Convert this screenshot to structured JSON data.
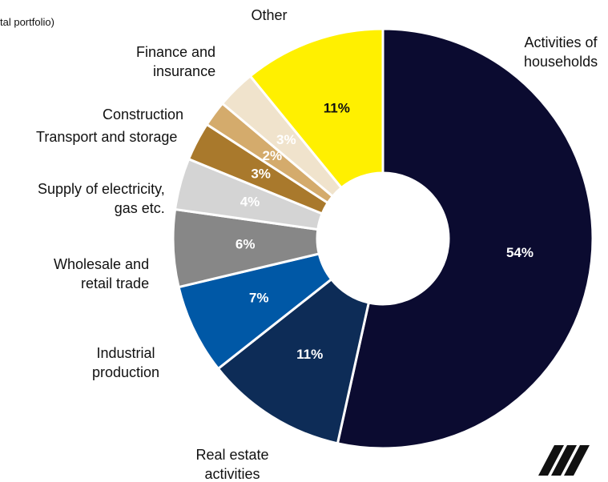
{
  "chart_data": {
    "type": "donut",
    "title": "tal portfolio)",
    "categories": [
      "Activities of\nhouseholds",
      "Real estate\nactivities",
      "Industrial\nproduction",
      "Wholesale and\nretail trade",
      "Supply of electricity,\ngas etc.",
      "Transport and storage",
      "Construction",
      "Finance and\ninsurance",
      "Other"
    ],
    "values": [
      54,
      11,
      7,
      6,
      4,
      3,
      2,
      3,
      11
    ],
    "value_labels": [
      "54%",
      "11%",
      "7%",
      "6%",
      "4%",
      "3%",
      "2%",
      "3%",
      "11%"
    ],
    "colors": [
      "#0b0b30",
      "#0d2c57",
      "#0058a6",
      "#878787",
      "#d4d4d4",
      "#a9792c",
      "#d4ab6c",
      "#f0e3cc",
      "#fff000"
    ]
  }
}
